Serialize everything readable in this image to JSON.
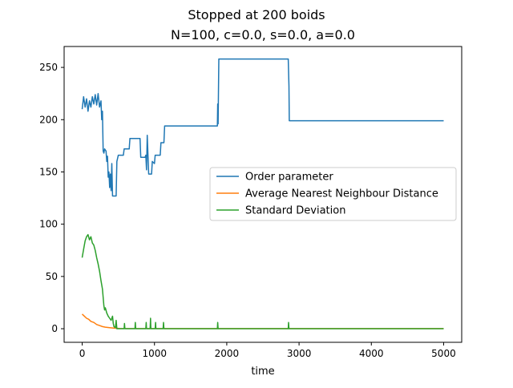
{
  "suptitle": "Stopped at 200 boids",
  "title": "N=100, c=0.0, s=0.0, a=0.0",
  "chart_data": {
    "type": "line",
    "xlabel": "time",
    "ylabel": "",
    "xlim": [
      -250,
      5250
    ],
    "ylim": [
      -13,
      270
    ],
    "xticks": [
      0,
      1000,
      2000,
      3000,
      4000,
      5000
    ],
    "yticks": [
      0,
      50,
      100,
      150,
      200,
      250
    ],
    "grid": false,
    "legend_position": "center-right",
    "series": [
      {
        "name": "Order parameter",
        "color": "#1f77b4",
        "points": [
          [
            0,
            210
          ],
          [
            20,
            222
          ],
          [
            40,
            212
          ],
          [
            60,
            220
          ],
          [
            80,
            208
          ],
          [
            100,
            218
          ],
          [
            120,
            212
          ],
          [
            140,
            222
          ],
          [
            160,
            215
          ],
          [
            180,
            224
          ],
          [
            200,
            214
          ],
          [
            220,
            225
          ],
          [
            240,
            212
          ],
          [
            260,
            218
          ],
          [
            270,
            200
          ],
          [
            280,
            208
          ],
          [
            290,
            170
          ],
          [
            300,
            168
          ],
          [
            310,
            172
          ],
          [
            330,
            170
          ],
          [
            340,
            160
          ],
          [
            350,
            165
          ],
          [
            360,
            145
          ],
          [
            370,
            150
          ],
          [
            380,
            135
          ],
          [
            390,
            148
          ],
          [
            400,
            132
          ],
          [
            410,
            158
          ],
          [
            420,
            127
          ],
          [
            470,
            127
          ],
          [
            480,
            160
          ],
          [
            500,
            166
          ],
          [
            570,
            166
          ],
          [
            580,
            172
          ],
          [
            650,
            172
          ],
          [
            660,
            182
          ],
          [
            800,
            182
          ],
          [
            810,
            164
          ],
          [
            870,
            164
          ],
          [
            880,
            166
          ],
          [
            890,
            152
          ],
          [
            900,
            185
          ],
          [
            920,
            148
          ],
          [
            960,
            148
          ],
          [
            970,
            160
          ],
          [
            1000,
            158
          ],
          [
            1010,
            166
          ],
          [
            1080,
            166
          ],
          [
            1090,
            178
          ],
          [
            1130,
            178
          ],
          [
            1140,
            194
          ],
          [
            1870,
            194
          ],
          [
            1875,
            215
          ],
          [
            1880,
            196
          ],
          [
            1890,
            258
          ],
          [
            2850,
            258
          ],
          [
            2860,
            232
          ],
          [
            2865,
            199
          ],
          [
            5000,
            199
          ]
        ]
      },
      {
        "name": "Average Nearest Neighbour Distance",
        "color": "#ff7f0e",
        "points": [
          [
            0,
            14
          ],
          [
            30,
            12
          ],
          [
            60,
            10
          ],
          [
            90,
            9
          ],
          [
            120,
            7
          ],
          [
            160,
            6
          ],
          [
            200,
            4
          ],
          [
            240,
            3
          ],
          [
            280,
            2
          ],
          [
            320,
            1.5
          ],
          [
            380,
            1
          ],
          [
            450,
            0.5
          ],
          [
            520,
            0.2
          ],
          [
            5000,
            0.1
          ]
        ]
      },
      {
        "name": "Standard Deviation",
        "color": "#2ca02c",
        "points": [
          [
            0,
            68
          ],
          [
            20,
            76
          ],
          [
            40,
            84
          ],
          [
            60,
            88
          ],
          [
            80,
            90
          ],
          [
            100,
            85
          ],
          [
            120,
            88
          ],
          [
            140,
            82
          ],
          [
            160,
            80
          ],
          [
            180,
            75
          ],
          [
            200,
            68
          ],
          [
            220,
            62
          ],
          [
            240,
            55
          ],
          [
            260,
            46
          ],
          [
            280,
            38
          ],
          [
            290,
            30
          ],
          [
            300,
            22
          ],
          [
            310,
            18
          ],
          [
            320,
            20
          ],
          [
            340,
            15
          ],
          [
            360,
            12
          ],
          [
            380,
            10
          ],
          [
            400,
            8
          ],
          [
            420,
            12
          ],
          [
            430,
            5
          ],
          [
            440,
            2
          ],
          [
            460,
            1
          ],
          [
            470,
            8
          ],
          [
            480,
            0
          ],
          [
            580,
            0
          ],
          [
            585,
            5
          ],
          [
            590,
            0
          ],
          [
            730,
            0
          ],
          [
            735,
            6
          ],
          [
            740,
            0
          ],
          [
            880,
            0
          ],
          [
            885,
            6
          ],
          [
            890,
            0
          ],
          [
            940,
            0
          ],
          [
            945,
            10
          ],
          [
            950,
            0
          ],
          [
            1010,
            0
          ],
          [
            1015,
            6
          ],
          [
            1020,
            0
          ],
          [
            1120,
            0
          ],
          [
            1125,
            6
          ],
          [
            1130,
            0
          ],
          [
            1870,
            0
          ],
          [
            1875,
            6
          ],
          [
            1880,
            0
          ],
          [
            2850,
            0
          ],
          [
            2855,
            6
          ],
          [
            2860,
            0
          ],
          [
            5000,
            0
          ]
        ]
      }
    ]
  }
}
